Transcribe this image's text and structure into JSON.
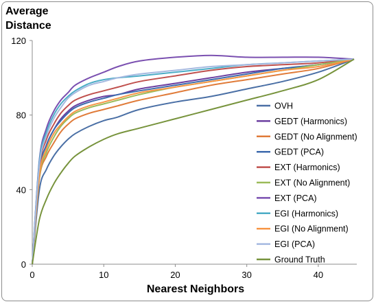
{
  "chart_data": {
    "type": "line",
    "ylabel_line1": "Average",
    "ylabel_line2": "Distance",
    "xlabel": "Nearest Neighbors",
    "xlim": [
      0,
      45
    ],
    "ylim": [
      0,
      120
    ],
    "xticks": [
      0,
      10,
      20,
      30,
      40
    ],
    "yticks": [
      0,
      40,
      80,
      120
    ],
    "grid": false,
    "legend_placement": "right",
    "x": [
      0,
      1,
      2,
      3,
      4,
      5,
      6,
      8,
      10,
      12,
      15,
      20,
      25,
      30,
      35,
      40,
      45
    ],
    "series": [
      {
        "name": "OVH",
        "color": "#4a6fa5",
        "values": [
          0,
          40,
          51,
          58,
          63,
          67,
          70,
          74,
          77,
          79,
          83,
          87,
          90,
          94,
          98,
          103,
          110
        ]
      },
      {
        "name": "GEDT (Harmonics)",
        "color": "#6b3fa0",
        "values": [
          0,
          50,
          64,
          72,
          78,
          82,
          85,
          88,
          90,
          91,
          94,
          97,
          100,
          103,
          105,
          107,
          110
        ]
      },
      {
        "name": "GEDT (No Alignment)",
        "color": "#e07b39",
        "values": [
          0,
          46,
          58,
          65,
          71,
          75,
          78,
          81,
          83,
          85,
          88,
          92,
          96,
          99,
          102,
          105,
          110
        ]
      },
      {
        "name": "GEDT (PCA)",
        "color": "#3d6aad",
        "values": [
          0,
          50,
          64,
          72,
          77,
          81,
          84,
          87,
          89,
          91,
          93,
          96,
          99,
          102,
          105,
          107,
          110
        ]
      },
      {
        "name": "EXT (Harmonics)",
        "color": "#c0504d",
        "values": [
          0,
          52,
          67,
          75,
          81,
          85,
          88,
          91,
          93,
          95,
          98,
          101,
          104,
          106,
          107,
          108,
          110
        ]
      },
      {
        "name": "EXT (No Alignment)",
        "color": "#9bbb59",
        "values": [
          0,
          47,
          60,
          68,
          74,
          78,
          81,
          84,
          86,
          88,
          91,
          95,
          98,
          101,
          104,
          107,
          110
        ]
      },
      {
        "name": "EXT (PCA)",
        "color": "#7a4fb0",
        "values": [
          0,
          56,
          73,
          82,
          88,
          92,
          96,
          100,
          103,
          106,
          109,
          111,
          112,
          111,
          111,
          111,
          110
        ]
      },
      {
        "name": "EGI (Harmonics)",
        "color": "#4bacc6",
        "values": [
          0,
          55,
          71,
          80,
          86,
          90,
          93,
          97,
          99,
          100,
          101,
          103,
          105,
          107,
          108,
          109,
          110
        ]
      },
      {
        "name": "EGI (No Alignment)",
        "color": "#f79646",
        "values": [
          0,
          48,
          62,
          70,
          75,
          79,
          82,
          85,
          87,
          89,
          92,
          95,
          98,
          101,
          104,
          106,
          110
        ]
      },
      {
        "name": "EGI (PCA)",
        "color": "#a5b9e0",
        "values": [
          0,
          53,
          69,
          78,
          84,
          89,
          92,
          96,
          98,
          100,
          102,
          104,
          106,
          107,
          108,
          109,
          110
        ]
      },
      {
        "name": "Ground Truth",
        "color": "#77933c",
        "values": [
          0,
          24,
          35,
          43,
          49,
          54,
          58,
          63,
          67,
          70,
          73,
          78,
          83,
          88,
          93,
          99,
          110
        ]
      }
    ]
  }
}
